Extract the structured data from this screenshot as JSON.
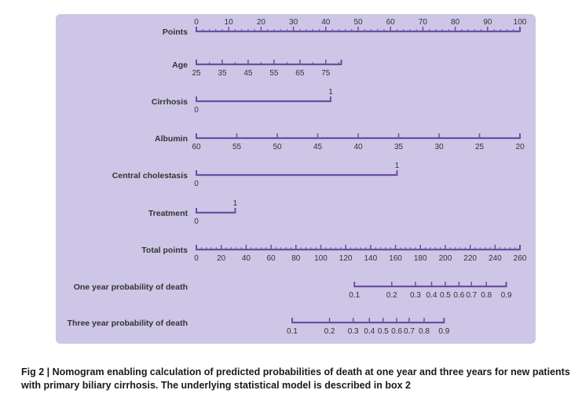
{
  "colors": {
    "panel": "#cdc6e6",
    "axis": "#6b4fa3",
    "text": "#333333"
  },
  "rows": [
    {
      "id": "points",
      "label": "Points",
      "labels_side": "above",
      "labels": [
        {
          "text": "0",
          "v": 0
        },
        {
          "text": "10",
          "v": 10
        },
        {
          "text": "20",
          "v": 20
        },
        {
          "text": "30",
          "v": 30
        },
        {
          "text": "40",
          "v": 40
        },
        {
          "text": "50",
          "v": 50
        },
        {
          "text": "60",
          "v": 60
        },
        {
          "text": "70",
          "v": 70
        },
        {
          "text": "80",
          "v": 80
        },
        {
          "text": "90",
          "v": 90
        },
        {
          "text": "100",
          "v": 100
        }
      ],
      "start": 0,
      "end": 100,
      "minor_step": 2
    },
    {
      "id": "age",
      "label": "Age",
      "labels_side": "below",
      "labels": [
        {
          "text": "25",
          "v": 0
        },
        {
          "text": "35",
          "v": 8
        },
        {
          "text": "45",
          "v": 16
        },
        {
          "text": "55",
          "v": 24
        },
        {
          "text": "65",
          "v": 32
        },
        {
          "text": "75",
          "v": 40
        }
      ],
      "start": 0,
      "end": 44.8,
      "minor_step": 4
    },
    {
      "id": "cirrhosis",
      "label": "Cirrhosis",
      "labels": [
        {
          "text": "0",
          "v": 0,
          "side": "below"
        },
        {
          "text": "1",
          "v": 41.5,
          "side": "above"
        }
      ],
      "start": 0,
      "end": 41.5
    },
    {
      "id": "albumin",
      "label": "Albumin",
      "labels_side": "below",
      "labels": [
        {
          "text": "60",
          "v": 0
        },
        {
          "text": "55",
          "v": 12.5
        },
        {
          "text": "50",
          "v": 25
        },
        {
          "text": "45",
          "v": 37.5
        },
        {
          "text": "40",
          "v": 50
        },
        {
          "text": "35",
          "v": 62.5
        },
        {
          "text": "30",
          "v": 75
        },
        {
          "text": "25",
          "v": 87.5
        },
        {
          "text": "20",
          "v": 100
        }
      ],
      "start": 0,
      "end": 100
    },
    {
      "id": "central_cholestasis",
      "label": "Central cholestasis",
      "labels": [
        {
          "text": "0",
          "v": 0,
          "side": "below"
        },
        {
          "text": "1",
          "v": 62,
          "side": "above"
        }
      ],
      "start": 0,
      "end": 62
    },
    {
      "id": "treatment",
      "label": "Treatment",
      "labels": [
        {
          "text": "0",
          "v": 0,
          "side": "below"
        },
        {
          "text": "1",
          "v": 12,
          "side": "above"
        }
      ],
      "start": 0,
      "end": 12
    },
    {
      "id": "total_points",
      "label": "Total points",
      "labels_side": "below",
      "labels": [
        {
          "text": "0",
          "v": 0
        },
        {
          "text": "20",
          "v": 20
        },
        {
          "text": "40",
          "v": 40
        },
        {
          "text": "60",
          "v": 60
        },
        {
          "text": "80",
          "v": 80
        },
        {
          "text": "100",
          "v": 100
        },
        {
          "text": "120",
          "v": 120
        },
        {
          "text": "140",
          "v": 140
        },
        {
          "text": "160",
          "v": 160
        },
        {
          "text": "180",
          "v": 180
        },
        {
          "text": "200",
          "v": 200
        },
        {
          "text": "220",
          "v": 220
        },
        {
          "text": "240",
          "v": 240
        },
        {
          "text": "260",
          "v": 260
        }
      ],
      "start": 0,
      "end": 260,
      "minor_step": 4,
      "scale_max": 260
    },
    {
      "id": "one_year",
      "label": "One year probability of death",
      "labels_side": "below",
      "labels": [
        {
          "text": "0.1",
          "v": 127
        },
        {
          "text": "0.2",
          "v": 157
        },
        {
          "text": "0.3",
          "v": 176
        },
        {
          "text": "0.4",
          "v": 189
        },
        {
          "text": "0.5",
          "v": 200
        },
        {
          "text": "0.6",
          "v": 211
        },
        {
          "text": "0.7",
          "v": 221
        },
        {
          "text": "0.8",
          "v": 233
        },
        {
          "text": "0.9",
          "v": 249
        }
      ],
      "start": 127,
      "end": 249,
      "scale_max": 260
    },
    {
      "id": "three_year",
      "label": "Three year probability of death",
      "labels_side": "below",
      "labels": [
        {
          "text": "0.1",
          "v": 77
        },
        {
          "text": "0.2",
          "v": 107
        },
        {
          "text": "0.3",
          "v": 126
        },
        {
          "text": "0.4",
          "v": 139
        },
        {
          "text": "0.5",
          "v": 150
        },
        {
          "text": "0.6",
          "v": 161
        },
        {
          "text": "0.7",
          "v": 171
        },
        {
          "text": "0.8",
          "v": 183
        },
        {
          "text": "0.9",
          "v": 199
        }
      ],
      "start": 77,
      "end": 199,
      "scale_max": 260
    }
  ],
  "caption": {
    "line1": "Fig 2 | Nomogram enabling calculation of predicted probabilities of death at one year and three years for new patients",
    "line2": "with primary biliary cirrhosis. The underlying statistical model is described in box 2"
  }
}
